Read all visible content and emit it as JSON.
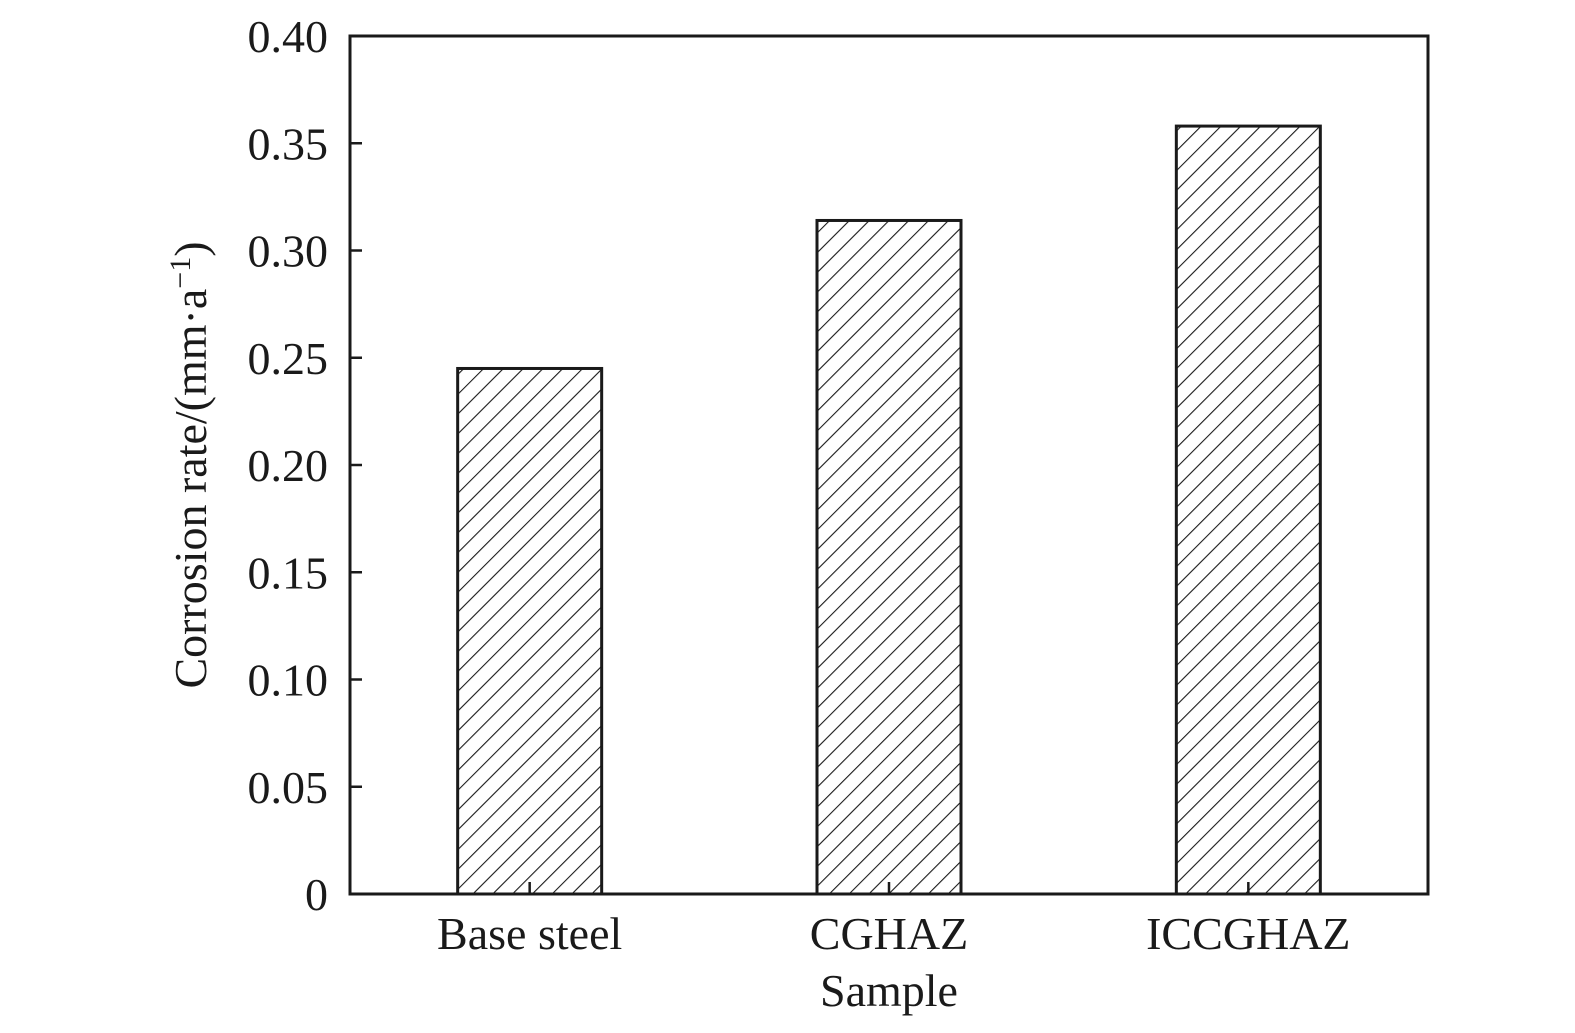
{
  "chart_data": {
    "type": "bar",
    "title": "",
    "xlabel": "Sample",
    "ylabel": "Corrosion rate/(mm·a",
    "ylabel_superscript": "−1",
    "ylabel_close": ")",
    "categories": [
      "Base steel",
      "CGHAZ",
      "ICCGHAZ"
    ],
    "values": [
      0.245,
      0.314,
      0.358
    ],
    "ylim": [
      0,
      0.4
    ],
    "yticks": [
      "0",
      "0.05",
      "0.10",
      "0.15",
      "0.20",
      "0.25",
      "0.30",
      "0.35",
      "0.40"
    ],
    "ytick_values": [
      0,
      0.05,
      0.1,
      0.15,
      0.2,
      0.25,
      0.3,
      0.35,
      0.4
    ],
    "grid": false,
    "bar_fill": "diagonal-hatch",
    "colors": {
      "axis": "#1a1a1a",
      "bar_edge": "#1a1a1a",
      "hatch": "#1a1a1a",
      "background": "#ffffff"
    }
  }
}
